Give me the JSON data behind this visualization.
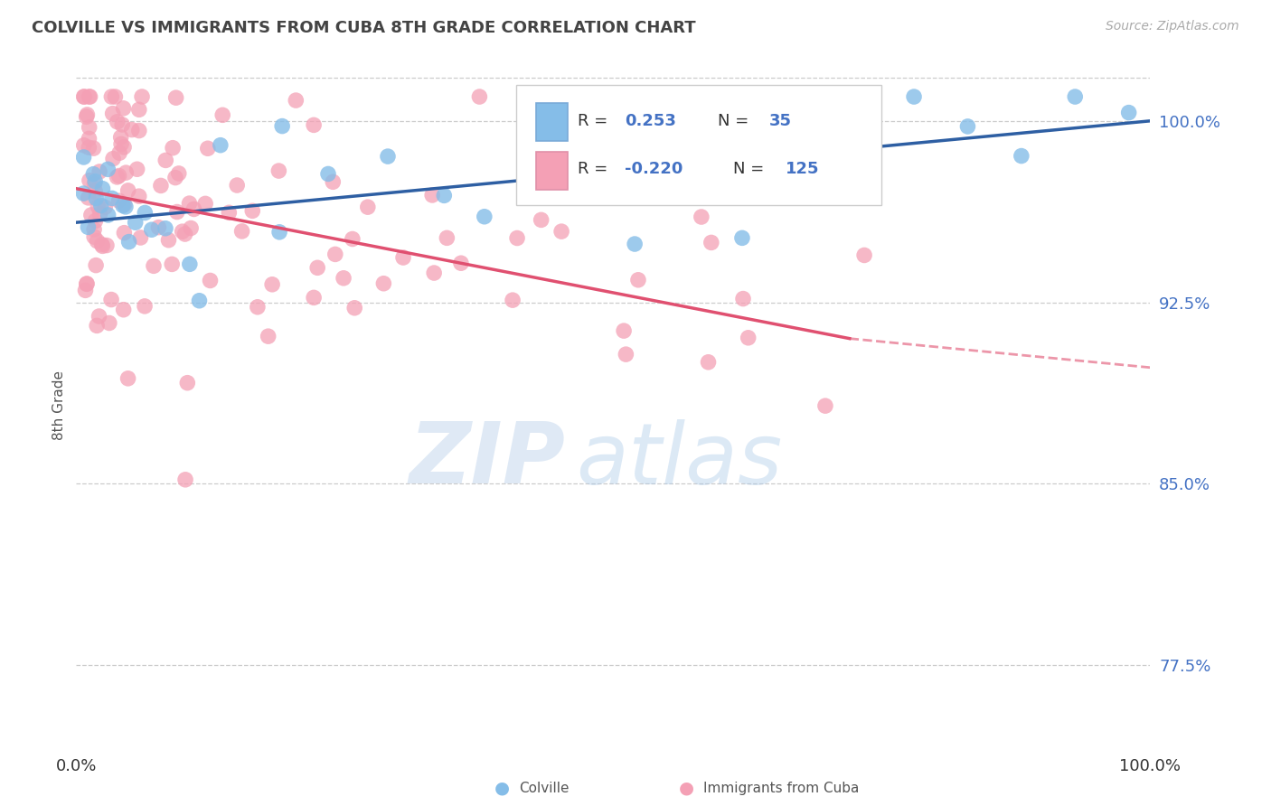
{
  "title": "COLVILLE VS IMMIGRANTS FROM CUBA 8TH GRADE CORRELATION CHART",
  "source": "Source: ZipAtlas.com",
  "ylabel": "8th Grade",
  "xlim": [
    0.0,
    100.0
  ],
  "ylim": [
    74.0,
    102.5
  ],
  "yticks": [
    77.5,
    85.0,
    92.5,
    100.0
  ],
  "ytick_labels": [
    "77.5%",
    "85.0%",
    "92.5%",
    "100.0%"
  ],
  "colville_color": "#85BDE8",
  "cuba_color": "#F4A0B5",
  "trend_blue": "#2E5FA3",
  "trend_pink": "#E05070",
  "watermark_zip": "ZIP",
  "watermark_atlas": "atlas",
  "background_color": "#FFFFFF",
  "blue_line_x0": 0.0,
  "blue_line_y0": 95.8,
  "blue_line_x1": 100.0,
  "blue_line_y1": 100.0,
  "pink_line_x0": 0.0,
  "pink_line_y0": 97.2,
  "pink_line_solid_x1": 72.0,
  "pink_line_solid_y1": 91.0,
  "pink_line_dash_x1": 100.0,
  "pink_line_dash_y1": 89.8
}
